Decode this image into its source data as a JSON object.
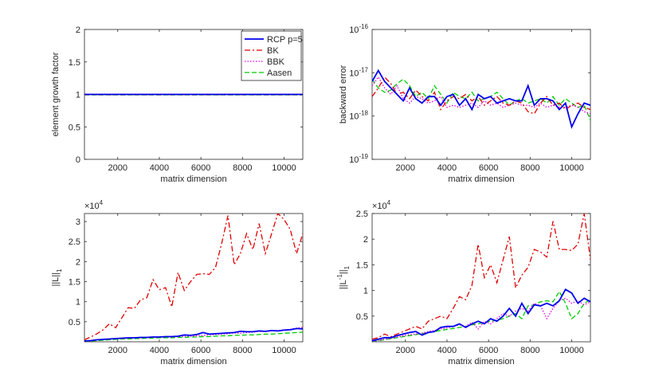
{
  "colors": {
    "rcp": "#0000ee",
    "bk": "#e00000",
    "bbk": "#e000e0",
    "aasen": "#00cc00",
    "axis": "#262626"
  },
  "legend": {
    "entries": [
      {
        "label": "RCP p=5",
        "series": "rcp"
      },
      {
        "label": "BK",
        "series": "bk"
      },
      {
        "label": "BBK",
        "series": "bbk"
      },
      {
        "label": "Aasen",
        "series": "aasen"
      }
    ]
  },
  "chart_data": [
    {
      "id": "growth",
      "type": "line",
      "title": "",
      "xlabel": "matrix dimension",
      "ylabel": "element growth factor",
      "xlim": [
        400,
        10900
      ],
      "xticks": [
        2000,
        4000,
        6000,
        8000,
        10000
      ],
      "ylim": [
        0,
        2
      ],
      "yticks": [
        0,
        0.5,
        1,
        1.5,
        2
      ],
      "ytick_labels": [
        "0",
        "0.5",
        "1",
        "1.5",
        "2"
      ],
      "yscale": "linear",
      "legend_position": "top-right",
      "x": [
        400,
        700,
        1000,
        1300,
        1600,
        1900,
        2200,
        2500,
        2800,
        3100,
        3400,
        3700,
        4000,
        4300,
        4600,
        4900,
        5200,
        5500,
        5800,
        6100,
        6400,
        6700,
        7000,
        7300,
        7600,
        7900,
        8200,
        8500,
        8800,
        9100,
        9400,
        9700,
        10000,
        10300,
        10600,
        10900
      ],
      "series": [
        {
          "key": "rcp",
          "name": "RCP p=5",
          "values": [
            1,
            1,
            1,
            1,
            1,
            1,
            1,
            1,
            1,
            1,
            1,
            1,
            1,
            1,
            1,
            1,
            1,
            1,
            1,
            1,
            1,
            1,
            1,
            1,
            1,
            1,
            1,
            1,
            1,
            1,
            1,
            1,
            1,
            1,
            1,
            1
          ]
        },
        {
          "key": "bk",
          "name": "BK",
          "values": [
            1,
            1,
            1,
            1,
            1,
            1,
            1,
            1,
            1,
            1,
            1,
            1,
            1,
            1,
            1,
            1,
            1,
            1,
            1,
            1,
            1,
            1,
            1,
            1,
            1,
            1,
            1,
            1,
            1,
            1,
            1,
            1,
            1,
            1,
            1,
            1
          ]
        },
        {
          "key": "bbk",
          "name": "BBK",
          "values": [
            1,
            1,
            1,
            1,
            1,
            1,
            1,
            1,
            1,
            1,
            1,
            1,
            1,
            1,
            1,
            1,
            1,
            1,
            1,
            1,
            1,
            1,
            1,
            1,
            1,
            1,
            1,
            1,
            1,
            1,
            1,
            1,
            1,
            1,
            1,
            1
          ]
        },
        {
          "key": "aasen",
          "name": "Aasen",
          "values": [
            1,
            1,
            1,
            1,
            1,
            1,
            1,
            1,
            1,
            1,
            1,
            1,
            1,
            1,
            1,
            1,
            1,
            1,
            1,
            1,
            1,
            1,
            1,
            1,
            1,
            1,
            1,
            1,
            1,
            1,
            1,
            1,
            1,
            1,
            1,
            1
          ]
        }
      ]
    },
    {
      "id": "backward",
      "type": "line",
      "title": "",
      "xlabel": "matrix dimension",
      "ylabel": "backward error",
      "xlim": [
        400,
        10900
      ],
      "xticks": [
        2000,
        4000,
        6000,
        8000,
        10000
      ],
      "ylim": [
        -19,
        -16
      ],
      "yticks": [
        -19,
        -18,
        -17,
        -16
      ],
      "ytick_base": "10",
      "ytick_exponents": [
        "-19",
        "-18",
        "-17",
        "-16"
      ],
      "yscale": "log",
      "x": [
        400,
        700,
        1000,
        1300,
        1600,
        1900,
        2200,
        2500,
        2800,
        3100,
        3400,
        3700,
        4000,
        4300,
        4600,
        4900,
        5200,
        5500,
        5800,
        6100,
        6400,
        6700,
        7000,
        7300,
        7600,
        7900,
        8200,
        8500,
        8800,
        9100,
        9400,
        9700,
        10000,
        10300,
        10600,
        10900
      ],
      "series": [
        {
          "key": "rcp",
          "name": "RCP p=5",
          "values": [
            -17.2,
            -16.95,
            -17.2,
            -17.35,
            -17.5,
            -17.65,
            -17.35,
            -17.6,
            -17.7,
            -17.55,
            -17.55,
            -17.75,
            -17.55,
            -17.5,
            -17.75,
            -17.6,
            -17.85,
            -17.5,
            -17.6,
            -17.55,
            -17.7,
            -17.65,
            -17.6,
            -17.65,
            -17.65,
            -17.3,
            -17.75,
            -17.6,
            -17.6,
            -17.65,
            -17.85,
            -17.7,
            -18.25,
            -17.95,
            -17.7,
            -17.75
          ]
        },
        {
          "key": "bk",
          "name": "BK",
          "values": [
            -17.55,
            -17.35,
            -17.1,
            -17.25,
            -17.5,
            -17.45,
            -17.6,
            -17.4,
            -17.55,
            -17.65,
            -17.45,
            -17.85,
            -17.65,
            -17.55,
            -17.6,
            -17.5,
            -17.65,
            -17.55,
            -17.75,
            -17.65,
            -17.55,
            -17.7,
            -17.75,
            -17.65,
            -17.7,
            -17.9,
            -17.95,
            -17.7,
            -17.55,
            -17.75,
            -17.7,
            -17.85,
            -17.75,
            -17.7,
            -17.8,
            -17.85
          ]
        },
        {
          "key": "bbk",
          "name": "BBK",
          "values": [
            -17.3,
            -17.1,
            -17.35,
            -17.5,
            -17.3,
            -17.6,
            -17.7,
            -17.55,
            -17.6,
            -17.7,
            -17.65,
            -17.55,
            -17.8,
            -17.75,
            -17.8,
            -17.75,
            -17.7,
            -17.8,
            -17.65,
            -17.75,
            -17.7,
            -17.8,
            -17.75,
            -17.7,
            -17.75,
            -17.75,
            -17.8,
            -17.7,
            -17.8,
            -17.75,
            -17.8,
            -17.8,
            -17.75,
            -17.8,
            -17.9,
            -17.95
          ]
        },
        {
          "key": "aasen",
          "name": "Aasen",
          "values": [
            -17.15,
            -17.35,
            -17.45,
            -17.4,
            -17.25,
            -17.15,
            -17.3,
            -17.55,
            -17.45,
            -17.6,
            -17.3,
            -17.5,
            -17.7,
            -17.45,
            -17.55,
            -17.6,
            -17.45,
            -17.65,
            -17.6,
            -17.55,
            -17.45,
            -17.6,
            -17.75,
            -17.65,
            -17.6,
            -17.7,
            -17.65,
            -17.6,
            -17.7,
            -17.55,
            -17.75,
            -17.6,
            -17.7,
            -17.8,
            -17.75,
            -18.1
          ]
        }
      ]
    },
    {
      "id": "normL",
      "type": "line",
      "title": "",
      "xlabel": "matrix dimension",
      "ylabel": "||L||",
      "ylabel_subscript": "1",
      "exponent_label_base": "×10",
      "exponent_label_power": "4",
      "xlim": [
        400,
        10900
      ],
      "xticks": [
        2000,
        4000,
        6000,
        8000,
        10000
      ],
      "ylim": [
        0,
        3.2
      ],
      "yticks": [
        0.5,
        1,
        1.5,
        2,
        2.5,
        3
      ],
      "ytick_labels": [
        "0.5",
        "1",
        "1.5",
        "2",
        "2.5",
        "3"
      ],
      "yscale": "linear",
      "x": [
        400,
        700,
        1000,
        1300,
        1600,
        1900,
        2200,
        2500,
        2800,
        3100,
        3400,
        3700,
        4000,
        4300,
        4600,
        4900,
        5200,
        5500,
        5800,
        6100,
        6400,
        6700,
        7000,
        7300,
        7600,
        7900,
        8200,
        8500,
        8800,
        9100,
        9400,
        9700,
        10000,
        10300,
        10600,
        10900
      ],
      "series": [
        {
          "key": "rcp",
          "name": "RCP p=5",
          "values": [
            0.02,
            0.03,
            0.05,
            0.06,
            0.07,
            0.08,
            0.09,
            0.1,
            0.1,
            0.11,
            0.11,
            0.12,
            0.12,
            0.13,
            0.13,
            0.14,
            0.17,
            0.16,
            0.18,
            0.23,
            0.19,
            0.2,
            0.21,
            0.22,
            0.23,
            0.26,
            0.25,
            0.25,
            0.27,
            0.26,
            0.28,
            0.27,
            0.29,
            0.3,
            0.33,
            0.32
          ]
        },
        {
          "key": "bk",
          "name": "BK",
          "values": [
            0.05,
            0.12,
            0.2,
            0.3,
            0.45,
            0.35,
            0.6,
            0.85,
            0.83,
            1.05,
            1.1,
            1.55,
            1.3,
            1.35,
            0.87,
            1.73,
            1.28,
            1.5,
            1.68,
            1.7,
            1.68,
            1.85,
            2.45,
            3.15,
            1.92,
            2.2,
            2.7,
            2.3,
            2.95,
            2.2,
            2.7,
            3.2,
            3.05,
            2.8,
            2.2,
            2.7
          ]
        },
        {
          "key": "bbk",
          "name": "BBK",
          "values": [
            0.01,
            0.03,
            0.05,
            0.06,
            0.07,
            0.08,
            0.09,
            0.09,
            0.1,
            0.1,
            0.11,
            0.11,
            0.12,
            0.12,
            0.12,
            0.13,
            0.14,
            0.14,
            0.15,
            0.16,
            0.17,
            0.18,
            0.19,
            0.2,
            0.22,
            0.21,
            0.23,
            0.24,
            0.26,
            0.25,
            0.27,
            0.28,
            0.3,
            0.31,
            0.34,
            0.36
          ]
        },
        {
          "key": "aasen",
          "name": "Aasen",
          "values": [
            0.01,
            0.02,
            0.03,
            0.04,
            0.05,
            0.06,
            0.07,
            0.07,
            0.08,
            0.08,
            0.09,
            0.09,
            0.1,
            0.1,
            0.1,
            0.11,
            0.11,
            0.12,
            0.12,
            0.13,
            0.13,
            0.14,
            0.15,
            0.15,
            0.16,
            0.16,
            0.17,
            0.17,
            0.18,
            0.19,
            0.19,
            0.2,
            0.21,
            0.22,
            0.23,
            0.24
          ]
        }
      ]
    },
    {
      "id": "normLinv",
      "type": "line",
      "title": "",
      "xlabel": "matrix dimension",
      "ylabel": "||L",
      "ylabel_superscript": "-1",
      "ylabel_suffix": "||",
      "ylabel_subscript": "1",
      "exponent_label_base": "×10",
      "exponent_label_power": "4",
      "xlim": [
        400,
        10900
      ],
      "xticks": [
        2000,
        4000,
        6000,
        8000,
        10000
      ],
      "ylim": [
        0,
        2.5
      ],
      "yticks": [
        0.5,
        1,
        1.5,
        2,
        2.5
      ],
      "ytick_labels": [
        "0.5",
        "1",
        "1.5",
        "2",
        "2.5"
      ],
      "yscale": "linear",
      "x": [
        400,
        700,
        1000,
        1300,
        1600,
        1900,
        2200,
        2500,
        2800,
        3100,
        3400,
        3700,
        4000,
        4300,
        4600,
        4900,
        5200,
        5500,
        5800,
        6100,
        6400,
        6700,
        7000,
        7300,
        7600,
        7900,
        8200,
        8500,
        8800,
        9100,
        9400,
        9700,
        10000,
        10300,
        10600,
        10900
      ],
      "series": [
        {
          "key": "rcp",
          "name": "RCP p=5",
          "values": [
            0.02,
            0.05,
            0.08,
            0.08,
            0.12,
            0.15,
            0.18,
            0.2,
            0.13,
            0.18,
            0.2,
            0.28,
            0.3,
            0.3,
            0.35,
            0.28,
            0.35,
            0.4,
            0.35,
            0.45,
            0.4,
            0.5,
            0.65,
            0.5,
            0.75,
            0.55,
            0.72,
            0.7,
            0.75,
            0.7,
            0.8,
            1.02,
            0.95,
            0.75,
            0.85,
            0.78
          ]
        },
        {
          "key": "bk",
          "name": "BK",
          "values": [
            0.05,
            0.08,
            0.15,
            0.1,
            0.15,
            0.2,
            0.25,
            0.3,
            0.25,
            0.4,
            0.45,
            0.5,
            0.45,
            0.65,
            0.88,
            0.82,
            1.1,
            1.9,
            1.25,
            1.5,
            1.15,
            1.6,
            2.05,
            1.05,
            1.3,
            1.45,
            1.8,
            1.75,
            1.65,
            2.35,
            1.8,
            1.8,
            1.78,
            1.9,
            2.5,
            1.6
          ]
        },
        {
          "key": "bbk",
          "name": "BBK",
          "values": [
            0.01,
            0.03,
            0.05,
            0.07,
            0.09,
            0.12,
            0.14,
            0.15,
            0.17,
            0.2,
            0.22,
            0.25,
            0.27,
            0.3,
            0.33,
            0.3,
            0.38,
            0.25,
            0.4,
            0.35,
            0.45,
            0.55,
            0.5,
            0.6,
            0.65,
            0.6,
            0.75,
            0.7,
            0.45,
            0.65,
            0.8,
            0.85,
            0.75,
            0.8,
            0.72,
            0.78
          ]
        },
        {
          "key": "aasen",
          "name": "Aasen",
          "values": [
            0.01,
            0.02,
            0.04,
            0.06,
            0.08,
            0.1,
            0.12,
            0.14,
            0.16,
            0.18,
            0.2,
            0.22,
            0.24,
            0.26,
            0.28,
            0.3,
            0.33,
            0.35,
            0.38,
            0.4,
            0.42,
            0.45,
            0.5,
            0.55,
            0.45,
            0.7,
            0.72,
            0.78,
            0.8,
            0.78,
            0.98,
            0.75,
            0.45,
            0.55,
            0.75,
            0.82
          ]
        }
      ]
    }
  ]
}
